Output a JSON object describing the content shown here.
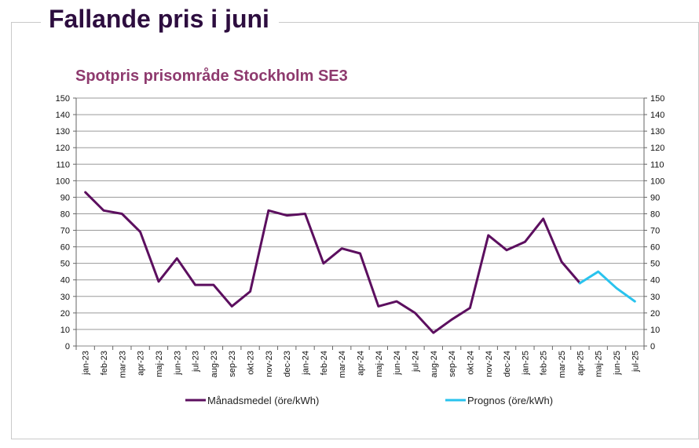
{
  "heading": "Fallande pris i juni",
  "chart_data": {
    "type": "line",
    "title": "Spotpris prisområde Stockholm SE3",
    "xlabel": "",
    "ylabel": "",
    "ylim": [
      0,
      150
    ],
    "y_ticks": [
      0,
      10,
      20,
      30,
      40,
      50,
      60,
      70,
      80,
      90,
      100,
      110,
      120,
      130,
      140,
      150
    ],
    "secondary_y_axis": true,
    "grid": true,
    "legend_position": "bottom",
    "categories": [
      "jan-23",
      "feb-23",
      "mar-23",
      "apr-23",
      "maj-23",
      "jun-23",
      "jul-23",
      "aug-23",
      "sep-23",
      "okt-23",
      "nov-23",
      "dec-23",
      "jan-24",
      "feb-24",
      "mar-24",
      "apr-24",
      "maj-24",
      "jun-24",
      "jul-24",
      "aug-24",
      "sep-24",
      "okt-24",
      "nov-24",
      "dec-24",
      "jan-25",
      "feb-25",
      "mar-25",
      "apr-25",
      "maj-25",
      "jun-25",
      "jul-25"
    ],
    "series": [
      {
        "name": "Månadsmedel (öre/kWh)",
        "color": "#5c0f5f",
        "values": [
          93,
          82,
          80,
          69,
          39,
          53,
          37,
          37,
          24,
          33,
          82,
          79,
          80,
          50,
          59,
          56,
          24,
          27,
          20,
          8,
          16,
          23,
          67,
          58,
          63,
          77,
          51,
          38,
          null,
          null,
          null
        ]
      },
      {
        "name": "Prognos (öre/kWh)",
        "color": "#29c3ee",
        "values": [
          null,
          null,
          null,
          null,
          null,
          null,
          null,
          null,
          null,
          null,
          null,
          null,
          null,
          null,
          null,
          null,
          null,
          null,
          null,
          null,
          null,
          null,
          null,
          null,
          null,
          null,
          null,
          38,
          45,
          35,
          27
        ]
      }
    ]
  }
}
